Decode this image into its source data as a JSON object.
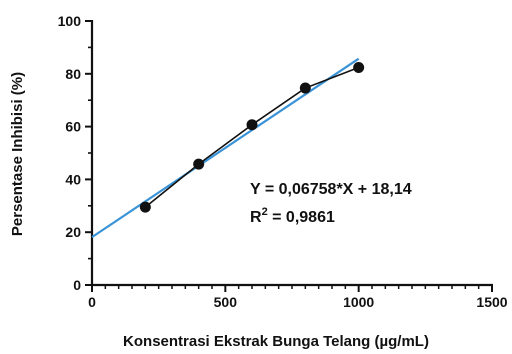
{
  "chart_data": {
    "type": "scatter",
    "xlabel": "Konsentrasi Ekstrak Bunga Telang (µg/mL)",
    "ylabel": "Persentase Inhibisi (%)",
    "xlim": [
      0,
      1500
    ],
    "ylim": [
      0,
      100
    ],
    "x_ticks": [
      0,
      500,
      1000,
      1500
    ],
    "y_ticks": [
      0,
      20,
      40,
      60,
      80,
      100
    ],
    "x_tick_labels": [
      "0",
      "500",
      "1000",
      "1500"
    ],
    "y_tick_labels": [
      "0",
      "20",
      "40",
      "60",
      "80",
      "100"
    ],
    "grid": false,
    "series": [
      {
        "x": [
          200,
          400,
          600,
          800,
          1000
        ],
        "y": [
          29.5,
          45.8,
          60.7,
          74.6,
          82.4
        ],
        "color": "#111111",
        "style": "points-connected"
      }
    ],
    "regression": {
      "slope": 0.06758,
      "intercept": 18.14,
      "x_range": [
        0,
        1000
      ],
      "color": "#3a93d6"
    },
    "annotations": {
      "equation": "Y = 0,06758*X + 18,14",
      "r_squared_prefix": "R",
      "r_squared_sup": "2",
      "r_squared_value": " = 0,9861"
    }
  }
}
